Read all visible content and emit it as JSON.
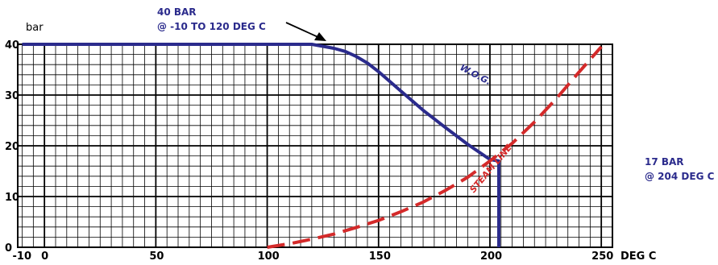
{
  "chart_data": {
    "type": "line",
    "xlabel": "",
    "ylabel": "",
    "x_unit": "DEG C",
    "y_unit": "bar",
    "xlim": [
      -12,
      255
    ],
    "ylim": [
      0,
      40
    ],
    "x_ticks": [
      -10,
      0,
      50,
      100,
      150,
      200,
      250
    ],
    "y_ticks": [
      0,
      10,
      20,
      30,
      40
    ],
    "grid": true,
    "series": [
      {
        "name": "W.O.G.",
        "color": "#2b2b8c",
        "style": "solid",
        "points": [
          [
            -10,
            40
          ],
          [
            120,
            40
          ],
          [
            125,
            39.6
          ],
          [
            130,
            39.2
          ],
          [
            135,
            38.6
          ],
          [
            140,
            37.6
          ],
          [
            145,
            36.3
          ],
          [
            150,
            34.6
          ],
          [
            160,
            30.8
          ],
          [
            170,
            27
          ],
          [
            180,
            23.6
          ],
          [
            190,
            20.3
          ],
          [
            200,
            17.3
          ],
          [
            204,
            17
          ],
          [
            204,
            0
          ]
        ]
      },
      {
        "name": "STEAM LINE",
        "color": "#d42a2a",
        "style": "dashed",
        "points": [
          [
            100,
            0
          ],
          [
            110,
            0.7
          ],
          [
            120,
            1.6
          ],
          [
            130,
            2.6
          ],
          [
            140,
            3.9
          ],
          [
            150,
            5.3
          ],
          [
            160,
            7
          ],
          [
            170,
            8.9
          ],
          [
            180,
            11.2
          ],
          [
            190,
            13.8
          ],
          [
            200,
            17
          ],
          [
            210,
            20.5
          ],
          [
            220,
            24.7
          ],
          [
            230,
            29.4
          ],
          [
            240,
            34.5
          ],
          [
            250,
            39.5
          ]
        ]
      }
    ],
    "annotations": [
      {
        "line1": "40 BAR",
        "line2": "@ -10 TO 120 DEG C",
        "x": 120,
        "y": 40
      },
      {
        "line1": "17 BAR",
        "line2": "@ 204 DEG C",
        "x": 204,
        "y": 17
      }
    ]
  },
  "colors": {
    "grid": "#000000",
    "wog": "#2b2b8c",
    "steam": "#d42a2a",
    "annotation": "#2b2b8c"
  }
}
